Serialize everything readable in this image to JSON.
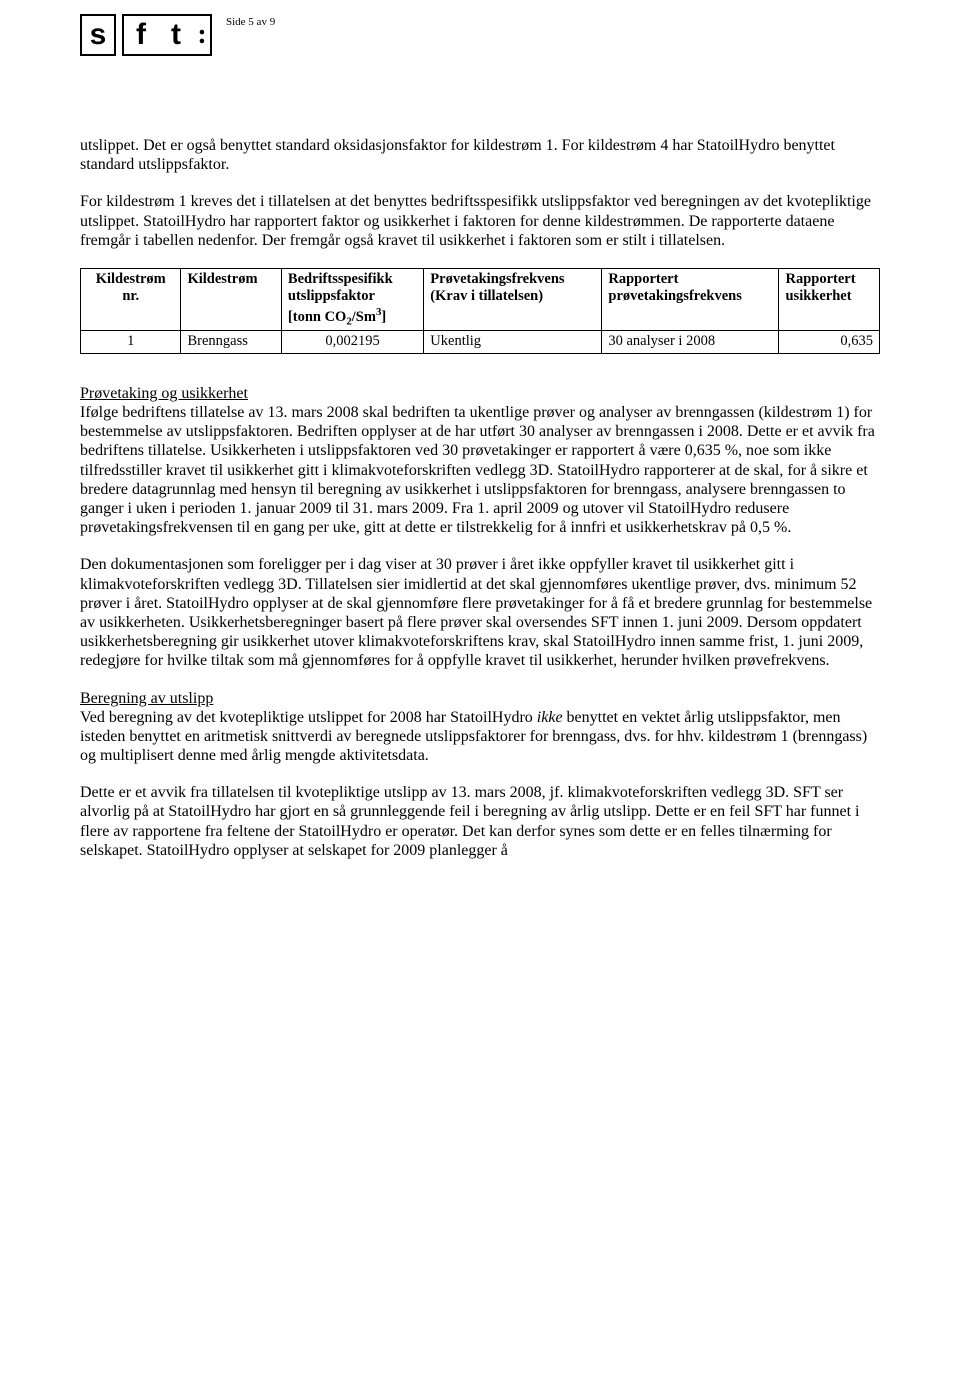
{
  "page": {
    "logo_s": "s",
    "logo_f": "f",
    "logo_t": "t",
    "logo_colon": ":",
    "page_label": "Side 5 av 9"
  },
  "para1": "utslippet. Det er også benyttet standard oksidasjonsfaktor for kildestrøm 1. For kildestrøm 4 har StatoilHydro benyttet standard utslippsfaktor.",
  "para2": "For kildestrøm 1 kreves det i tillatelsen at det benyttes bedriftsspesifikk utslippsfaktor ved beregningen av det kvotepliktige utslippet. StatoilHydro har rapportert faktor og usikkerhet i faktoren for denne kildestrømmen. De rapporterte dataene fremgår i tabellen nedenfor. Der fremgår også kravet til usikkerhet i faktoren som er stilt i tillatelsen.",
  "table": {
    "columns": [
      {
        "label_line1": "Kildestrøm",
        "label_line2": "nr.",
        "align": "center"
      },
      {
        "label_line1": "Kildestrøm",
        "label_line2": "",
        "align": "left"
      },
      {
        "label_line1": "Bedriftsspesifikk",
        "label_line2": "utslippsfaktor",
        "label_line3_pre": "[tonn CO",
        "label_line3_sub": "2",
        "label_line3_mid": "/Sm",
        "label_line3_sup": "3",
        "label_line3_post": "]",
        "align": "left"
      },
      {
        "label_line1": "Prøvetakingsfrekvens",
        "label_line2": "(Krav i tillatelsen)",
        "align": "left"
      },
      {
        "label_line1": "Rapportert",
        "label_line2": "prøvetakingsfrekvens",
        "align": "left"
      },
      {
        "label_line1": "Rapportert",
        "label_line2": "usikkerhet",
        "align": "left"
      }
    ],
    "rows": [
      [
        "1",
        "Brenngass",
        "0,002195",
        "Ukentlig",
        "30 analyser i 2008",
        "0,635"
      ]
    ]
  },
  "section1_heading": "Prøvetaking og usikkerhet",
  "para3": "Ifølge bedriftens tillatelse av 13. mars 2008 skal bedriften ta ukentlige prøver og analyser av brenngassen (kildestrøm 1) for bestemmelse av utslippsfaktoren. Bedriften opplyser at de har utført 30 analyser av brenngassen i 2008. Dette er et avvik fra bedriftens tillatelse. Usikkerheten i utslippsfaktoren ved 30 prøvetakinger er rapportert å være 0,635 %, noe som ikke tilfredsstiller kravet til usikkerhet gitt i klimakvoteforskriften vedlegg 3D. StatoilHydro rapporterer at de skal, for å sikre et bredere datagrunnlag med hensyn til beregning av usikkerhet i utslippsfaktoren for brenngass, analysere brenngassen to ganger i uken i perioden 1. januar 2009 til 31. mars 2009. Fra 1. april 2009 og utover vil StatoilHydro redusere prøvetakingsfrekvensen til en gang per uke, gitt at dette er tilstrekkelig for å innfri et usikkerhetskrav på 0,5 %.",
  "para4": "Den dokumentasjonen som foreligger per i dag viser at 30 prøver i året ikke oppfyller kravet til usikkerhet gitt i klimakvoteforskriften vedlegg 3D. Tillatelsen sier imidlertid at det skal gjennomføres ukentlige prøver, dvs. minimum 52 prøver i året. StatoilHydro opplyser at de skal gjennomføre flere prøvetakinger for å få et bredere grunnlag for bestemmelse av usikkerheten. Usikkerhetsberegninger basert på flere prøver skal oversendes SFT innen 1. juni 2009. Dersom oppdatert usikkerhetsberegning gir usikkerhet utover klimakvoteforskriftens krav, skal StatoilHydro innen samme frist, 1. juni 2009, redegjøre for hvilke tiltak som må gjennomføres for å oppfylle kravet til usikkerhet, herunder hvilken prøvefrekvens.",
  "section2_heading": "Beregning av utslipp",
  "para5_pre": "Ved beregning av det kvotepliktige utslippet for 2008 har StatoilHydro ",
  "para5_italic": "ikke",
  "para5_post": " benyttet en vektet årlig utslippsfaktor, men isteden benyttet en aritmetisk snittverdi av beregnede utslippsfaktorer for brenngass, dvs. for hhv. kildestrøm 1 (brenngass) og multiplisert denne med årlig mengde aktivitetsdata.",
  "para6": "Dette er et avvik fra tillatelsen til kvotepliktige utslipp av 13. mars 2008, jf. klimakvoteforskriften vedlegg 3D. SFT ser alvorlig på at StatoilHydro har gjort en så grunnleggende feil i beregning av årlig utslipp. Dette er en feil SFT har funnet i flere av rapportene fra feltene der StatoilHydro er operatør. Det kan derfor synes som dette er en felles tilnærming for selskapet. StatoilHydro opplyser at selskapet for 2009 planlegger å"
}
